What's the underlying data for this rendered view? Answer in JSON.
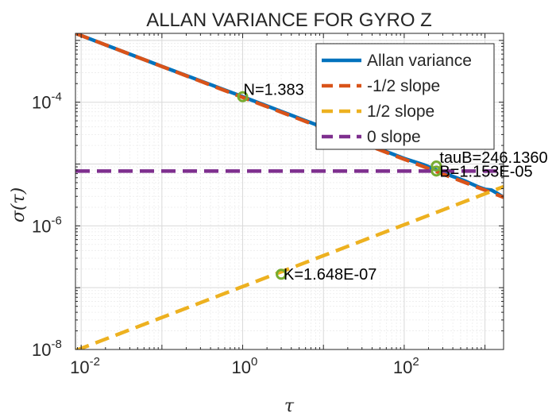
{
  "chart_data": {
    "type": "line",
    "title": "ALLAN VARIANCE FOR GYRO Z",
    "xlabel": "τ",
    "ylabel": "σ(τ)",
    "xscale": "log",
    "yscale": "log",
    "xlim": [
      0.0085,
      1700
    ],
    "ylim": [
      1e-08,
      0.0013
    ],
    "grid": true,
    "minor_grid": true,
    "legend_position": "top-right",
    "x_ticks": [
      {
        "base": "10",
        "exp": "-2",
        "value": 0.01
      },
      {
        "base": "10",
        "exp": "0",
        "value": 1
      },
      {
        "base": "10",
        "exp": "2",
        "value": 100
      }
    ],
    "y_ticks": [
      {
        "base": "10",
        "exp": "-8",
        "value": 1e-08
      },
      {
        "base": "10",
        "exp": "-6",
        "value": 1e-06
      },
      {
        "base": "10",
        "exp": "-4",
        "value": 0.0001
      }
    ],
    "series": [
      {
        "name": "Allan variance",
        "color": "#0072BD",
        "dash": "solid",
        "x": [
          0.0085,
          0.1,
          1,
          10,
          100,
          180,
          250,
          400,
          550,
          700,
          850,
          1000,
          1200,
          1450,
          1700
        ],
        "y": [
          0.0013,
          0.00038,
          0.000123,
          3.9e-05,
          1.23e-05,
          9.6e-06,
          8e-06,
          6.3e-06,
          5.4e-06,
          4.7e-06,
          4.2e-06,
          3.9e-06,
          3.8e-06,
          3.3e-06,
          2.9e-06
        ]
      },
      {
        "name": "-1/2 slope",
        "color": "#D95319",
        "dash": "dashed",
        "x": [
          0.0085,
          1700
        ],
        "y": [
          0.0013,
          2.9e-06
        ]
      },
      {
        "name": "1/2 slope",
        "color": "#EDB120",
        "dash": "dashed",
        "x": [
          0.0085,
          1700
        ],
        "y": [
          9.6e-09,
          4.3e-06
        ]
      },
      {
        "name": "0 slope",
        "color": "#7E2F8E",
        "dash": "dashed",
        "x": [
          0.0085,
          1700
        ],
        "y": [
          7.7e-06,
          7.7e-06
        ]
      }
    ],
    "annotations": [
      {
        "name": "N",
        "text": "N=1.383",
        "x": 1,
        "y": 0.000123
      },
      {
        "name": "K",
        "text": "K=1.648E-07",
        "x": 3,
        "y": 1.65e-07
      },
      {
        "name": "B",
        "text": "B=1.153E-05",
        "x": 250,
        "y": 7.7e-06
      },
      {
        "name": "tauB",
        "text": "tauB=246.1360",
        "x": 250,
        "y": 9.3e-06
      }
    ],
    "marker_color": "#77AC30"
  }
}
